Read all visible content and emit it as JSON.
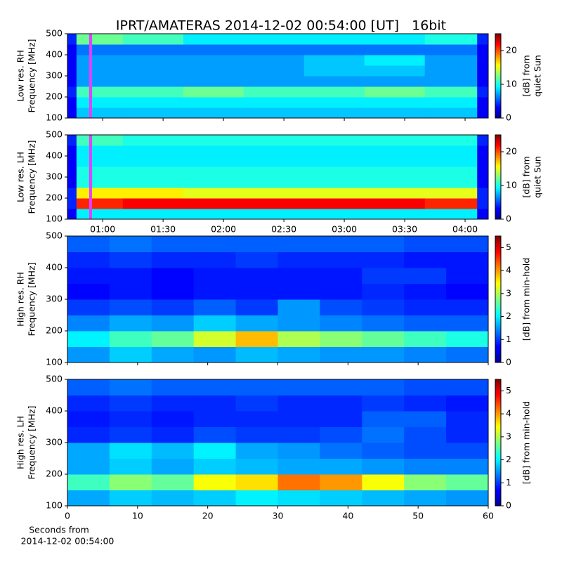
{
  "title": "IPRT/AMATERAS 2014-12-02 00:54:00 [UT]   16bit",
  "xlabel": [
    "Seconds from",
    "2014-12-02 00:54:00"
  ],
  "chart_data": [
    {
      "type": "heatmap",
      "ylabel": [
        "Low res. RH",
        "Frequency [MHz]"
      ],
      "colormap": "jet",
      "xlim": [
        42.5,
        251.5
      ],
      "ylim": [
        100,
        500
      ],
      "yticks": [
        100,
        200,
        300,
        400,
        500
      ],
      "x_bins": [
        42.5,
        47,
        70,
        100,
        130,
        160,
        190,
        220,
        246,
        251.5
      ],
      "y_bins": [
        100,
        150,
        200,
        250,
        300,
        350,
        400,
        450,
        500
      ],
      "z": [
        [
          3,
          8,
          8,
          8,
          8,
          8,
          8,
          8,
          3
        ],
        [
          3,
          9,
          9,
          9,
          9,
          9,
          9,
          9,
          3
        ],
        [
          4,
          11,
          11,
          12,
          11,
          11,
          12,
          11,
          4
        ],
        [
          3,
          7,
          7,
          7,
          7,
          7,
          7,
          7,
          3
        ],
        [
          3,
          7,
          7,
          7,
          7,
          8,
          8,
          7,
          3
        ],
        [
          3,
          7,
          7,
          7,
          7,
          8,
          9,
          7,
          3
        ],
        [
          3,
          6,
          6,
          6,
          6,
          6,
          6,
          6,
          3
        ],
        [
          4,
          12,
          11,
          9,
          9,
          9,
          9,
          10,
          4
        ]
      ],
      "zlim": [
        0,
        25
      ],
      "zticks": [
        0,
        10,
        20
      ],
      "colorbar_label": [
        "[dB] from",
        "quiet Sun"
      ],
      "markers": [
        {
          "x": 54,
          "color": "#e040ff"
        }
      ]
    },
    {
      "type": "heatmap",
      "ylabel": [
        "Low res. LH",
        "Frequency [MHz]"
      ],
      "colormap": "jet",
      "xlim": [
        42.5,
        251.5
      ],
      "ylim": [
        100,
        500
      ],
      "yticks": [
        100,
        200,
        300,
        400,
        500
      ],
      "xticks": [
        {
          "value": 60,
          "label": "01:00"
        },
        {
          "value": 90,
          "label": "01:30"
        },
        {
          "value": 120,
          "label": "02:00"
        },
        {
          "value": 150,
          "label": "02:30"
        },
        {
          "value": 180,
          "label": "03:00"
        },
        {
          "value": 210,
          "label": "03:30"
        },
        {
          "value": 240,
          "label": "04:00"
        }
      ],
      "x_bins": [
        42.5,
        47,
        70,
        100,
        130,
        160,
        190,
        220,
        246,
        251.5
      ],
      "y_bins": [
        100,
        150,
        200,
        250,
        300,
        350,
        400,
        450,
        500
      ],
      "z": [
        [
          3,
          9,
          9,
          9,
          9,
          9,
          9,
          9,
          3
        ],
        [
          4,
          21,
          22,
          22,
          22,
          22,
          22,
          21,
          4
        ],
        [
          4,
          16,
          16,
          15,
          15,
          15,
          15,
          15,
          4
        ],
        [
          3,
          10,
          10,
          10,
          10,
          10,
          10,
          10,
          3
        ],
        [
          3,
          10,
          10,
          10,
          10,
          10,
          10,
          10,
          3
        ],
        [
          3,
          9,
          9,
          9,
          9,
          9,
          9,
          9,
          3
        ],
        [
          3,
          9,
          9,
          9,
          9,
          9,
          9,
          9,
          3
        ],
        [
          4,
          11,
          10,
          10,
          10,
          10,
          10,
          10,
          4
        ]
      ],
      "zlim": [
        0,
        25
      ],
      "zticks": [
        0,
        10,
        20
      ],
      "colorbar_label": [
        "[dB] from",
        "quiet Sun"
      ],
      "markers": [
        {
          "x": 54,
          "color": "#e040ff"
        }
      ]
    },
    {
      "type": "heatmap",
      "ylabel": [
        "High res. RH",
        "Frequency [MHz]"
      ],
      "colormap": "jet",
      "xlim": [
        0,
        60
      ],
      "ylim": [
        100,
        500
      ],
      "yticks": [
        100,
        200,
        300,
        400,
        500
      ],
      "x_bins": [
        0,
        6,
        12,
        18,
        24,
        30,
        36,
        42,
        48,
        54,
        60
      ],
      "y_bins": [
        100,
        150,
        200,
        250,
        300,
        350,
        400,
        450,
        500
      ],
      "z": [
        [
          1.5,
          1.8,
          1.6,
          1.5,
          1.7,
          1.6,
          1.5,
          1.5,
          1.4,
          1.3
        ],
        [
          2.0,
          2.4,
          2.6,
          3.2,
          3.8,
          3.0,
          2.8,
          2.6,
          2.4,
          2.2
        ],
        [
          1.4,
          1.6,
          1.5,
          1.8,
          1.6,
          1.5,
          1.4,
          1.3,
          1.2,
          1.2
        ],
        [
          1.0,
          1.1,
          1.0,
          1.2,
          1.0,
          1.5,
          1.1,
          1.0,
          0.9,
          0.9
        ],
        [
          0.7,
          0.8,
          0.7,
          0.8,
          0.8,
          0.8,
          0.8,
          0.9,
          0.8,
          0.7
        ],
        [
          0.8,
          0.8,
          0.7,
          0.8,
          0.8,
          0.8,
          0.8,
          1.0,
          1.0,
          0.8
        ],
        [
          0.9,
          1.0,
          0.9,
          0.9,
          1.0,
          0.9,
          0.9,
          0.9,
          0.8,
          0.8
        ],
        [
          1.2,
          1.3,
          1.2,
          1.2,
          1.2,
          1.2,
          1.2,
          1.2,
          1.1,
          1.1
        ]
      ],
      "zlim": [
        0,
        5.5
      ],
      "zticks": [
        0,
        1,
        2,
        3,
        4,
        5
      ],
      "colorbar_label": [
        "[dB] from min-hold"
      ]
    },
    {
      "type": "heatmap",
      "ylabel": [
        "High res. LH",
        "Frequency [MHz]"
      ],
      "colormap": "jet",
      "xlim": [
        0,
        60
      ],
      "ylim": [
        100,
        500
      ],
      "yticks": [
        100,
        200,
        300,
        400,
        500
      ],
      "xticks": [
        0,
        10,
        20,
        30,
        40,
        50,
        60
      ],
      "x_bins": [
        0,
        6,
        12,
        18,
        24,
        30,
        36,
        42,
        48,
        54,
        60
      ],
      "y_bins": [
        100,
        150,
        200,
        250,
        300,
        350,
        400,
        450,
        500
      ],
      "z": [
        [
          1.6,
          1.8,
          1.7,
          1.8,
          2.0,
          1.9,
          1.8,
          1.7,
          1.6,
          1.5
        ],
        [
          2.4,
          2.8,
          2.6,
          3.4,
          3.6,
          4.2,
          4.0,
          3.4,
          2.8,
          2.6
        ],
        [
          1.6,
          1.8,
          1.6,
          1.8,
          1.7,
          1.6,
          1.6,
          1.5,
          1.4,
          1.4
        ],
        [
          1.6,
          1.9,
          1.7,
          2.0,
          1.6,
          1.5,
          1.3,
          1.2,
          1.1,
          1.1
        ],
        [
          0.9,
          1.0,
          0.9,
          1.1,
          1.0,
          1.0,
          1.1,
          1.3,
          1.1,
          0.9
        ],
        [
          0.8,
          0.9,
          0.8,
          0.9,
          0.9,
          0.9,
          0.9,
          1.2,
          1.2,
          0.9
        ],
        [
          0.9,
          1.0,
          0.9,
          0.9,
          1.0,
          0.9,
          0.9,
          1.0,
          0.9,
          0.8
        ],
        [
          1.2,
          1.3,
          1.2,
          1.2,
          1.2,
          1.2,
          1.2,
          1.2,
          1.1,
          1.1
        ]
      ],
      "zlim": [
        0,
        5.5
      ],
      "zticks": [
        0,
        1,
        2,
        3,
        4,
        5
      ],
      "colorbar_label": [
        "[dB] from min-hold"
      ]
    }
  ]
}
